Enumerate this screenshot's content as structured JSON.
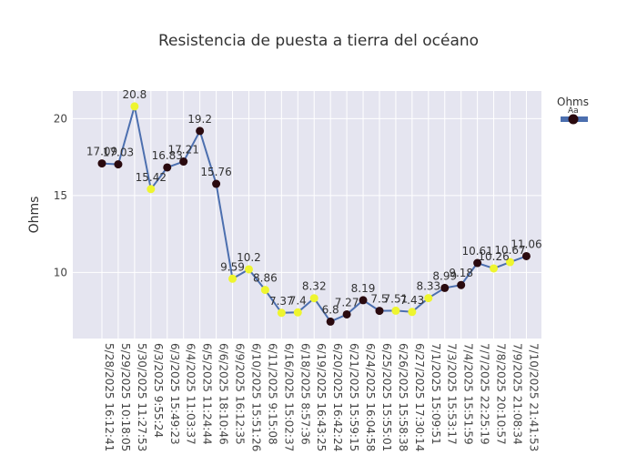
{
  "chart_data": {
    "type": "line",
    "title": "Resistencia de puesta a tierra del océano",
    "ylabel": "Ohms",
    "xlabel": "",
    "ylim": [
      5.7,
      21.8
    ],
    "yticks": [
      10,
      15,
      20
    ],
    "grid": true,
    "legend": {
      "title": "Ohms",
      "symbol_text": "Aa",
      "placement": "top-right"
    },
    "colors": {
      "plot_bg": "#e5e5f0",
      "grid": "#ffffff",
      "line": "#4c6faf",
      "marker_high": "#eef52f",
      "marker_low": "#2a0a0f",
      "legend_bar": "#4c6faf"
    },
    "categories": [
      "5/28/2025 16:12:41",
      "5/29/2025 10:18:05",
      "5/30/2025 11:27:53",
      "6/3/2025 9:55:24",
      "6/3/2025 15:49:23",
      "6/4/2025 11:03:37",
      "6/5/2025 11:24:44",
      "6/6/2025 18:10:46",
      "6/9/2025 16:12:35",
      "6/10/2025 15:51:26",
      "6/11/2025 9:15:08",
      "6/16/2025 15:02:37",
      "6/18/2025 8:57:36",
      "6/19/2025 16:43:25",
      "6/20/2025 16:42:24",
      "6/21/2025 15:59:15",
      "6/24/2025 16:04:58",
      "6/25/2025 15:55:01",
      "6/26/2025 15:58:38",
      "6/27/2025 17:30:14",
      "7/1/2025 15:09:51",
      "7/3/2025 15:53:17",
      "7/4/2025 15:51:59",
      "7/7/2025 22:25:19",
      "7/8/2025 20:10:57",
      "7/9/2025 21:08:34",
      "7/10/2025 21:41:53"
    ],
    "series": [
      {
        "name": "Ohms",
        "values": [
          17.09,
          17.03,
          20.8,
          15.42,
          16.83,
          17.21,
          19.2,
          15.76,
          9.59,
          10.2,
          8.86,
          7.37,
          7.4,
          8.32,
          6.8,
          7.27,
          8.19,
          7.5,
          7.51,
          7.43,
          8.33,
          8.99,
          9.18,
          10.61,
          10.26,
          10.67,
          11.06
        ],
        "labels": [
          "17.09",
          "17.03",
          "20.8",
          "15.42",
          "16.83",
          "17.21",
          "19.2",
          "15.76",
          "9.59",
          "10.2",
          "8.86",
          "7.37",
          "7.4",
          "8.32",
          "6.8",
          "7.27",
          "8.19",
          "7.5",
          "7.51",
          "7.43",
          "8.33",
          "8.99",
          "9.18",
          "10.61",
          "10.26",
          "10.67",
          "11.06"
        ],
        "marker_colors": [
          "low",
          "low",
          "high",
          "high",
          "low",
          "low",
          "low",
          "low",
          "high",
          "high",
          "high",
          "high",
          "high",
          "high",
          "low",
          "low",
          "low",
          "low",
          "high",
          "high",
          "high",
          "low",
          "low",
          "low",
          "high",
          "high",
          "low"
        ]
      }
    ]
  }
}
